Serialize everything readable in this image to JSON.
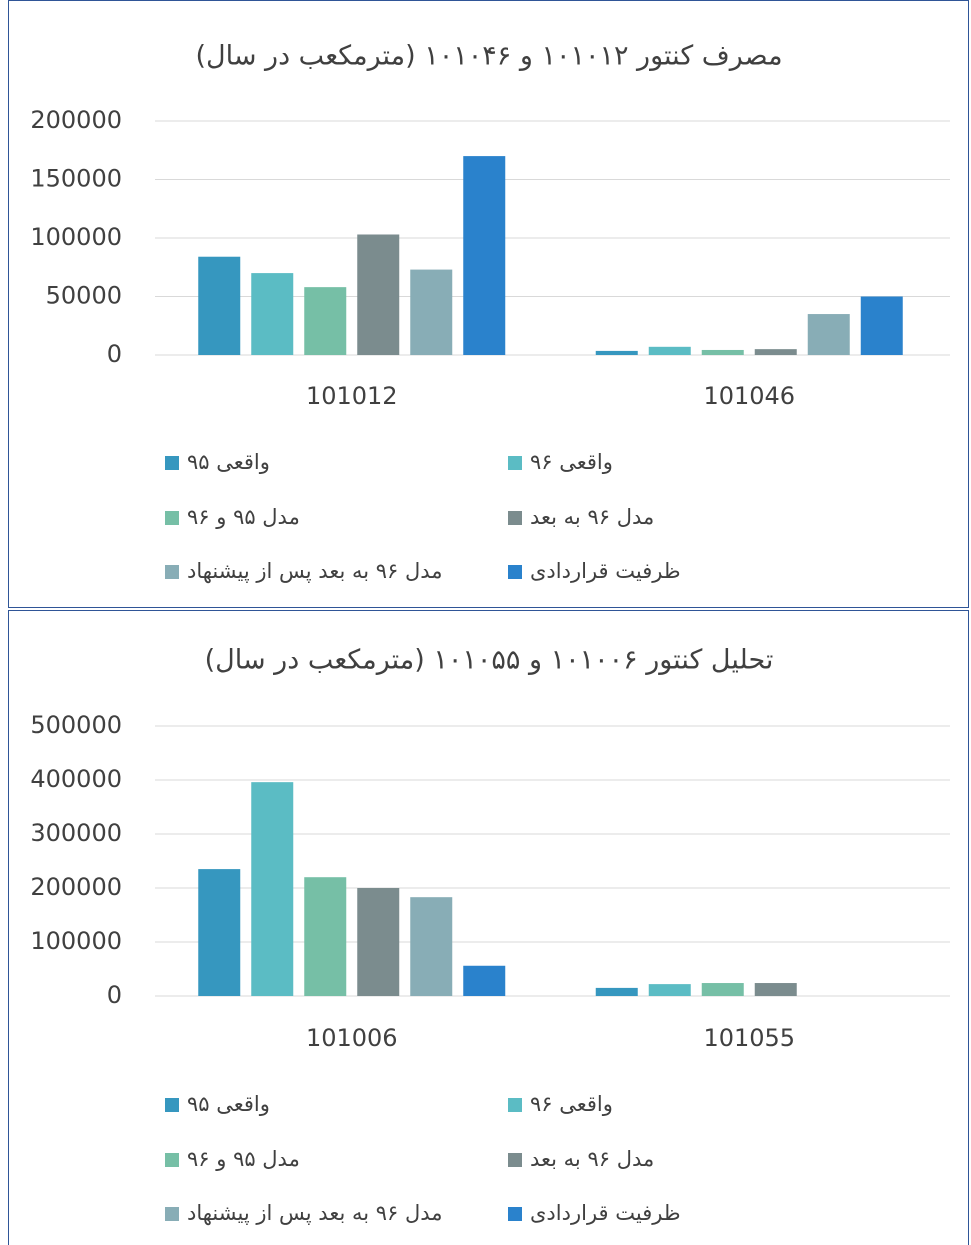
{
  "chart_data": [
    {
      "type": "bar",
      "title": "مصرف کنتور ۱۰۱۰۱۲ و ۱۰۱۰۴۶ (مترمکعب در سال)",
      "categories": [
        "101012",
        "101046"
      ],
      "series": [
        {
          "name": "۹۵ واقعی",
          "color": "#3697bf",
          "values": [
            84000,
            3500
          ]
        },
        {
          "name": "۹۶ واقعی",
          "color": "#5bbcc4",
          "values": [
            70000,
            7000
          ]
        },
        {
          "name": "مدل ۹۵ و ۹۶",
          "color": "#76bfa6",
          "values": [
            58000,
            4300
          ]
        },
        {
          "name": "مدل ۹۶ به بعد",
          "color": "#7b8c8e",
          "values": [
            103000,
            5000
          ]
        },
        {
          "name": "مدل ۹۶ به بعد پس از پیشنهاد",
          "color": "#88adb6",
          "values": [
            73000,
            35000
          ]
        },
        {
          "name": "ظرفیت قراردادی",
          "color": "#2a82cc",
          "values": [
            170000,
            50000
          ]
        }
      ],
      "ylim": [
        0,
        200000
      ],
      "yticks": [
        0,
        50000,
        100000,
        150000,
        200000
      ],
      "grid": true
    },
    {
      "type": "bar",
      "title": "تحلیل کنتور ۱۰۱۰۰۶ و ۱۰۱۰۵۵ (مترمکعب در سال)",
      "categories": [
        "101006",
        "101055"
      ],
      "series": [
        {
          "name": "۹۵ واقعی",
          "color": "#3697bf",
          "values": [
            235000,
            15000
          ]
        },
        {
          "name": "۹۶ واقعی",
          "color": "#5bbcc4",
          "values": [
            396000,
            22000
          ]
        },
        {
          "name": "مدل ۹۵ و ۹۶",
          "color": "#76bfa6",
          "values": [
            220000,
            24000
          ]
        },
        {
          "name": "مدل ۹۶ به بعد",
          "color": "#7b8c8e",
          "values": [
            200000,
            24000
          ]
        },
        {
          "name": "مدل ۹۶ به بعد پس از پیشنهاد",
          "color": "#88adb6",
          "values": [
            183000,
            null
          ]
        },
        {
          "name": "ظرفیت قراردادی",
          "color": "#2a82cc",
          "values": [
            56000,
            null
          ]
        }
      ],
      "ylim": [
        0,
        500000
      ],
      "yticks": [
        0,
        100000,
        200000,
        300000,
        400000,
        500000
      ],
      "grid": true
    }
  ]
}
